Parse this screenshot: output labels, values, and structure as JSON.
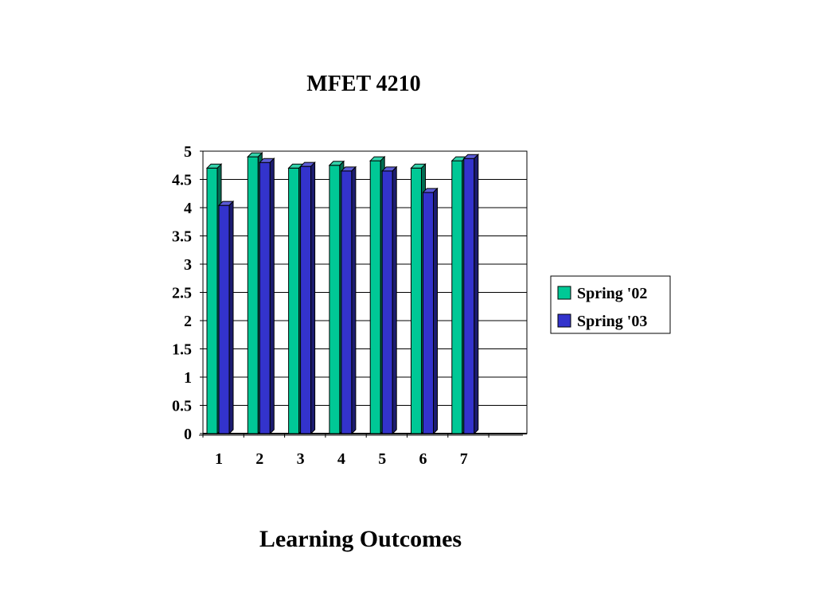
{
  "chart_data": {
    "type": "bar",
    "title": "MFET 4210",
    "xlabel": "Learning Outcomes",
    "ylabel": "",
    "categories": [
      "1",
      "2",
      "3",
      "4",
      "5",
      "6",
      "7"
    ],
    "ylim": [
      0,
      5
    ],
    "yticks": [
      "0",
      "0.5",
      "1",
      "1.5",
      "2",
      "2.5",
      "3",
      "3.5",
      "4",
      "4.5",
      "5"
    ],
    "series": [
      {
        "name": "Spring '02",
        "color": "#00C896",
        "values": [
          4.7,
          4.9,
          4.7,
          4.75,
          4.83,
          4.7,
          4.83
        ]
      },
      {
        "name": "Spring '03",
        "color": "#3333CC",
        "values": [
          4.04,
          4.8,
          4.73,
          4.65,
          4.65,
          4.27,
          4.87
        ]
      }
    ],
    "grid": true,
    "legend_position": "right",
    "three_d": true
  }
}
